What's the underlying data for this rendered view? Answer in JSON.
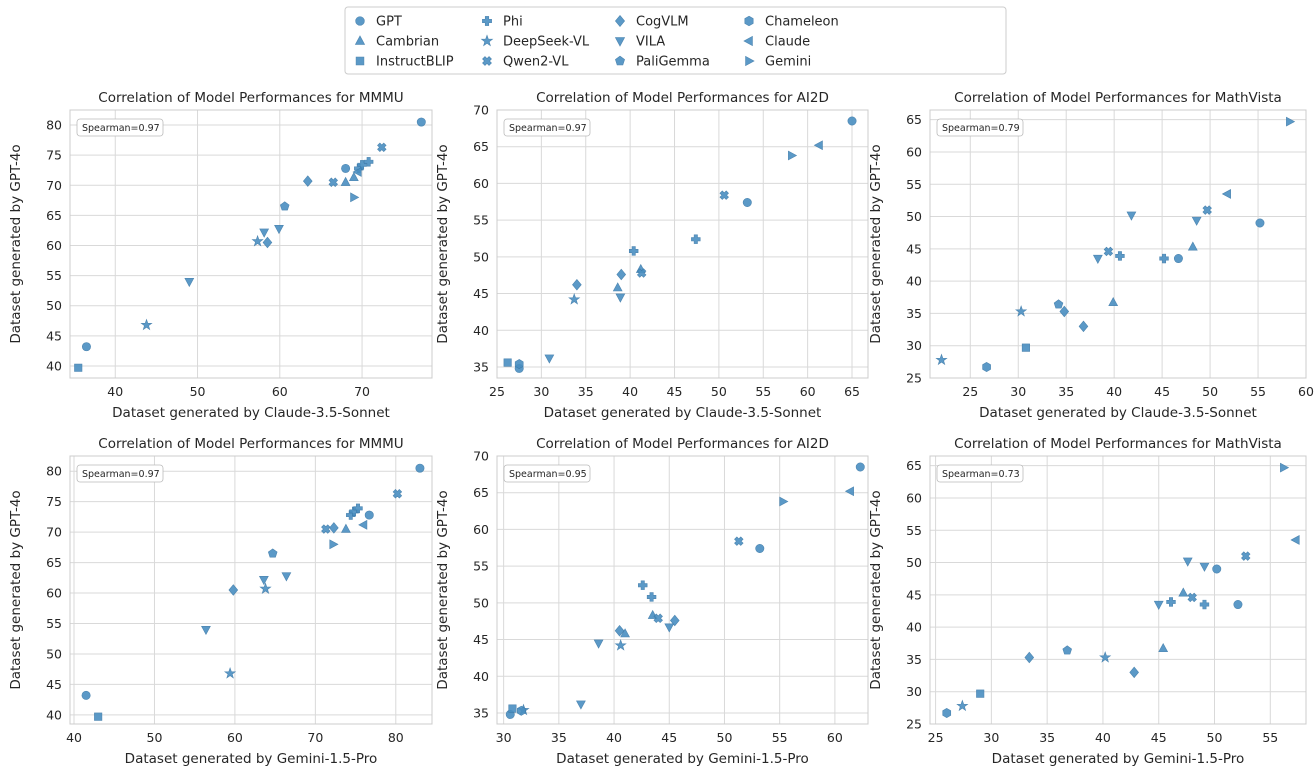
{
  "colors": {
    "marker": "#4a8fc1",
    "marker_edge": "#3a78a8",
    "grid": "#d9d9d9",
    "frame": "#cccccc"
  },
  "legend": {
    "placement": "top-center",
    "columns": 5,
    "entries": [
      {
        "name": "GPT",
        "marker": "circle"
      },
      {
        "name": "Cambrian",
        "marker": "triangle-up"
      },
      {
        "name": "InstructBLIP",
        "marker": "square"
      },
      {
        "name": "Phi",
        "marker": "plus"
      },
      {
        "name": "DeepSeek-VL",
        "marker": "star"
      },
      {
        "name": "Qwen2-VL",
        "marker": "x"
      },
      {
        "name": "CogVLM",
        "marker": "diamond"
      },
      {
        "name": "VILA",
        "marker": "triangle-down"
      },
      {
        "name": "PaliGemma",
        "marker": "pentagon"
      },
      {
        "name": "Chameleon",
        "marker": "hexagon"
      },
      {
        "name": "Claude",
        "marker": "triangle-left"
      },
      {
        "name": "Gemini",
        "marker": "triangle-right"
      }
    ]
  },
  "chart_data": [
    {
      "type": "scatter",
      "title": "Correlation of Model Performances for MMMU",
      "xlabel": "Dataset generated by Claude-3.5-Sonnet",
      "ylabel": "Dataset generated by GPT-4o",
      "xlim": [
        34.5,
        78.5
      ],
      "ylim": [
        38,
        82.5
      ],
      "xticks": [
        40,
        50,
        60,
        70
      ],
      "yticks": [
        40,
        45,
        50,
        55,
        60,
        65,
        70,
        75,
        80
      ],
      "annotation": "Spearman=0.97",
      "grid": true,
      "points": [
        {
          "model": "GPT",
          "x": 36.5,
          "y": 43.2
        },
        {
          "model": "GPT",
          "x": 68.0,
          "y": 72.8
        },
        {
          "model": "GPT",
          "x": 77.2,
          "y": 80.5
        },
        {
          "model": "InstructBLIP",
          "x": 35.5,
          "y": 39.7
        },
        {
          "model": "DeepSeek-VL",
          "x": 43.8,
          "y": 46.8
        },
        {
          "model": "DeepSeek-VL",
          "x": 57.3,
          "y": 60.7
        },
        {
          "model": "VILA",
          "x": 49.0,
          "y": 54.0
        },
        {
          "model": "VILA",
          "x": 58.1,
          "y": 62.2
        },
        {
          "model": "VILA",
          "x": 59.9,
          "y": 62.8
        },
        {
          "model": "CogVLM",
          "x": 58.5,
          "y": 60.5
        },
        {
          "model": "CogVLM",
          "x": 63.4,
          "y": 70.7
        },
        {
          "model": "PaliGemma",
          "x": 60.6,
          "y": 66.5
        },
        {
          "model": "Qwen2-VL",
          "x": 66.5,
          "y": 70.5
        },
        {
          "model": "Qwen2-VL",
          "x": 72.4,
          "y": 76.3
        },
        {
          "model": "Cambrian",
          "x": 68.0,
          "y": 70.5
        },
        {
          "model": "Cambrian",
          "x": 69.0,
          "y": 71.3
        },
        {
          "model": "Phi",
          "x": 69.6,
          "y": 72.8
        },
        {
          "model": "Phi",
          "x": 70.0,
          "y": 73.4
        },
        {
          "model": "Phi",
          "x": 70.8,
          "y": 73.9
        },
        {
          "model": "Claude",
          "x": 69.5,
          "y": 72.2
        },
        {
          "model": "Gemini",
          "x": 69.0,
          "y": 68.0
        }
      ]
    },
    {
      "type": "scatter",
      "title": "Correlation of Model Performances for AI2D",
      "xlabel": "Dataset generated by Claude-3.5-Sonnet",
      "ylabel": "Dataset generated by GPT-4o",
      "xlim": [
        25,
        66.8
      ],
      "ylim": [
        33.5,
        70
      ],
      "xticks": [
        25,
        30,
        35,
        40,
        45,
        50,
        55,
        60,
        65
      ],
      "yticks": [
        35,
        40,
        45,
        50,
        55,
        60,
        65,
        70
      ],
      "annotation": "Spearman=0.97",
      "grid": true,
      "points": [
        {
          "model": "InstructBLIP",
          "x": 26.2,
          "y": 35.6
        },
        {
          "model": "GPT",
          "x": 27.5,
          "y": 34.8
        },
        {
          "model": "GPT",
          "x": 53.2,
          "y": 57.4
        },
        {
          "model": "GPT",
          "x": 65.0,
          "y": 68.5
        },
        {
          "model": "Chameleon",
          "x": 27.5,
          "y": 35.4
        },
        {
          "model": "VILA",
          "x": 30.9,
          "y": 36.2
        },
        {
          "model": "VILA",
          "x": 38.9,
          "y": 44.5
        },
        {
          "model": "DeepSeek-VL",
          "x": 33.7,
          "y": 44.2
        },
        {
          "model": "CogVLM",
          "x": 34.0,
          "y": 46.2
        },
        {
          "model": "CogVLM",
          "x": 39.0,
          "y": 47.6
        },
        {
          "model": "Cambrian",
          "x": 38.6,
          "y": 45.8
        },
        {
          "model": "Cambrian",
          "x": 41.2,
          "y": 48.3
        },
        {
          "model": "Phi",
          "x": 40.4,
          "y": 50.8
        },
        {
          "model": "Phi",
          "x": 47.4,
          "y": 52.4
        },
        {
          "model": "Qwen2-VL",
          "x": 41.3,
          "y": 47.8
        },
        {
          "model": "Qwen2-VL",
          "x": 50.6,
          "y": 58.4
        },
        {
          "model": "Gemini",
          "x": 58.2,
          "y": 63.8
        },
        {
          "model": "Claude",
          "x": 61.3,
          "y": 65.2
        }
      ]
    },
    {
      "type": "scatter",
      "title": "Correlation of Model Performances for MathVista",
      "xlabel": "Dataset generated by Claude-3.5-Sonnet",
      "ylabel": "Dataset generated by GPT-4o",
      "xlim": [
        20.8,
        60
      ],
      "ylim": [
        25,
        66.5
      ],
      "xticks": [
        25,
        30,
        35,
        40,
        45,
        50,
        55,
        60
      ],
      "yticks": [
        25,
        30,
        35,
        40,
        45,
        50,
        55,
        60,
        65
      ],
      "annotation": "Spearman=0.79",
      "grid": true,
      "points": [
        {
          "model": "DeepSeek-VL",
          "x": 22.0,
          "y": 27.8
        },
        {
          "model": "DeepSeek-VL",
          "x": 30.3,
          "y": 35.3
        },
        {
          "model": "Chameleon",
          "x": 26.7,
          "y": 26.7
        },
        {
          "model": "InstructBLIP",
          "x": 30.8,
          "y": 29.7
        },
        {
          "model": "PaliGemma",
          "x": 34.2,
          "y": 36.4
        },
        {
          "model": "CogVLM",
          "x": 34.8,
          "y": 35.3
        },
        {
          "model": "CogVLM",
          "x": 36.8,
          "y": 33.0
        },
        {
          "model": "VILA",
          "x": 38.3,
          "y": 43.5
        },
        {
          "model": "VILA",
          "x": 41.8,
          "y": 50.2
        },
        {
          "model": "VILA",
          "x": 48.6,
          "y": 49.4
        },
        {
          "model": "Qwen2-VL",
          "x": 39.4,
          "y": 44.6
        },
        {
          "model": "Qwen2-VL",
          "x": 49.7,
          "y": 51.0
        },
        {
          "model": "Cambrian",
          "x": 39.9,
          "y": 36.7
        },
        {
          "model": "Cambrian",
          "x": 48.2,
          "y": 45.3
        },
        {
          "model": "Phi",
          "x": 40.6,
          "y": 43.9
        },
        {
          "model": "Phi",
          "x": 45.2,
          "y": 43.5
        },
        {
          "model": "GPT",
          "x": 46.7,
          "y": 43.5
        },
        {
          "model": "GPT",
          "x": 55.2,
          "y": 49.0
        },
        {
          "model": "Claude",
          "x": 51.8,
          "y": 53.5
        },
        {
          "model": "Gemini",
          "x": 58.3,
          "y": 64.7
        }
      ]
    },
    {
      "type": "scatter",
      "title": "Correlation of Model Performances for MMMU",
      "xlabel": "Dataset generated by Gemini-1.5-Pro",
      "ylabel": "Dataset generated by GPT-4o",
      "xlim": [
        39.5,
        84.5
      ],
      "ylim": [
        38.5,
        82.5
      ],
      "xticks": [
        40,
        50,
        60,
        70,
        80
      ],
      "yticks": [
        40,
        45,
        50,
        55,
        60,
        65,
        70,
        75,
        80
      ],
      "annotation": "Spearman=0.97",
      "grid": true,
      "points": [
        {
          "model": "GPT",
          "x": 41.5,
          "y": 43.2
        },
        {
          "model": "GPT",
          "x": 76.7,
          "y": 72.8
        },
        {
          "model": "GPT",
          "x": 83.0,
          "y": 80.5
        },
        {
          "model": "InstructBLIP",
          "x": 43.0,
          "y": 39.7
        },
        {
          "model": "VILA",
          "x": 56.4,
          "y": 54.0
        },
        {
          "model": "VILA",
          "x": 63.6,
          "y": 62.2
        },
        {
          "model": "VILA",
          "x": 66.4,
          "y": 62.8
        },
        {
          "model": "DeepSeek-VL",
          "x": 59.4,
          "y": 46.8
        },
        {
          "model": "DeepSeek-VL",
          "x": 63.8,
          "y": 60.7
        },
        {
          "model": "CogVLM",
          "x": 59.8,
          "y": 60.5
        },
        {
          "model": "CogVLM",
          "x": 72.3,
          "y": 70.7
        },
        {
          "model": "PaliGemma",
          "x": 64.7,
          "y": 66.5
        },
        {
          "model": "Qwen2-VL",
          "x": 71.3,
          "y": 70.5
        },
        {
          "model": "Qwen2-VL",
          "x": 80.2,
          "y": 76.3
        },
        {
          "model": "Gemini",
          "x": 72.2,
          "y": 68.0
        },
        {
          "model": "Cambrian",
          "x": 73.8,
          "y": 70.5
        },
        {
          "model": "Phi",
          "x": 74.4,
          "y": 72.8
        },
        {
          "model": "Phi",
          "x": 74.8,
          "y": 73.4
        },
        {
          "model": "Phi",
          "x": 75.3,
          "y": 73.9
        },
        {
          "model": "Claude",
          "x": 76.0,
          "y": 71.2
        }
      ]
    },
    {
      "type": "scatter",
      "title": "Correlation of Model Performances for AI2D",
      "xlabel": "Dataset generated by Gemini-1.5-Pro",
      "ylabel": "Dataset generated by GPT-4o",
      "xlim": [
        29.4,
        63
      ],
      "ylim": [
        33.5,
        70
      ],
      "xticks": [
        30,
        35,
        40,
        45,
        50,
        55,
        60
      ],
      "yticks": [
        35,
        40,
        45,
        50,
        55,
        60,
        65,
        70
      ],
      "annotation": "Spearman=0.95",
      "grid": true,
      "points": [
        {
          "model": "GPT",
          "x": 30.6,
          "y": 34.8
        },
        {
          "model": "GPT",
          "x": 53.2,
          "y": 57.4
        },
        {
          "model": "GPT",
          "x": 62.3,
          "y": 68.5
        },
        {
          "model": "InstructBLIP",
          "x": 30.8,
          "y": 35.6
        },
        {
          "model": "DeepSeek-VL",
          "x": 31.8,
          "y": 35.4
        },
        {
          "model": "DeepSeek-VL",
          "x": 40.6,
          "y": 44.2
        },
        {
          "model": "Chameleon",
          "x": 31.6,
          "y": 35.3
        },
        {
          "model": "VILA",
          "x": 37.0,
          "y": 36.2
        },
        {
          "model": "VILA",
          "x": 38.6,
          "y": 44.5
        },
        {
          "model": "VILA",
          "x": 45.0,
          "y": 46.7
        },
        {
          "model": "CogVLM",
          "x": 40.5,
          "y": 46.2
        },
        {
          "model": "CogVLM",
          "x": 45.5,
          "y": 47.6
        },
        {
          "model": "Cambrian",
          "x": 41.0,
          "y": 45.8
        },
        {
          "model": "Cambrian",
          "x": 43.5,
          "y": 48.3
        },
        {
          "model": "Phi",
          "x": 42.6,
          "y": 52.4
        },
        {
          "model": "Phi",
          "x": 43.4,
          "y": 50.8
        },
        {
          "model": "Qwen2-VL",
          "x": 44.0,
          "y": 47.9
        },
        {
          "model": "Qwen2-VL",
          "x": 51.3,
          "y": 58.4
        },
        {
          "model": "Gemini",
          "x": 55.3,
          "y": 63.8
        },
        {
          "model": "Claude",
          "x": 61.4,
          "y": 65.2
        }
      ]
    },
    {
      "type": "scatter",
      "title": "Correlation of Model Performances for MathVista",
      "xlabel": "Dataset generated by Gemini-1.5-Pro",
      "ylabel": "Dataset generated by GPT-4o",
      "xlim": [
        24.5,
        58.2
      ],
      "ylim": [
        25,
        66.5
      ],
      "xticks": [
        25,
        30,
        35,
        40,
        45,
        50,
        55
      ],
      "yticks": [
        25,
        30,
        35,
        40,
        45,
        50,
        55,
        60,
        65
      ],
      "annotation": "Spearman=0.73",
      "grid": true,
      "points": [
        {
          "model": "Chameleon",
          "x": 26.0,
          "y": 26.7
        },
        {
          "model": "DeepSeek-VL",
          "x": 27.4,
          "y": 27.8
        },
        {
          "model": "DeepSeek-VL",
          "x": 40.2,
          "y": 35.3
        },
        {
          "model": "InstructBLIP",
          "x": 29.0,
          "y": 29.7
        },
        {
          "model": "CogVLM",
          "x": 33.4,
          "y": 35.3
        },
        {
          "model": "CogVLM",
          "x": 42.8,
          "y": 33.0
        },
        {
          "model": "PaliGemma",
          "x": 36.8,
          "y": 36.4
        },
        {
          "model": "VILA",
          "x": 45.0,
          "y": 43.5
        },
        {
          "model": "VILA",
          "x": 47.6,
          "y": 50.2
        },
        {
          "model": "VILA",
          "x": 49.1,
          "y": 49.4
        },
        {
          "model": "Cambrian",
          "x": 45.4,
          "y": 36.7
        },
        {
          "model": "Cambrian",
          "x": 47.2,
          "y": 45.3
        },
        {
          "model": "Phi",
          "x": 46.1,
          "y": 43.9
        },
        {
          "model": "Phi",
          "x": 49.1,
          "y": 43.5
        },
        {
          "model": "Qwen2-VL",
          "x": 48.0,
          "y": 44.6
        },
        {
          "model": "Qwen2-VL",
          "x": 52.8,
          "y": 51.0
        },
        {
          "model": "GPT",
          "x": 50.2,
          "y": 49.0
        },
        {
          "model": "GPT",
          "x": 52.1,
          "y": 43.5
        },
        {
          "model": "Gemini",
          "x": 56.2,
          "y": 64.7
        },
        {
          "model": "Claude",
          "x": 57.3,
          "y": 53.5
        }
      ]
    }
  ]
}
